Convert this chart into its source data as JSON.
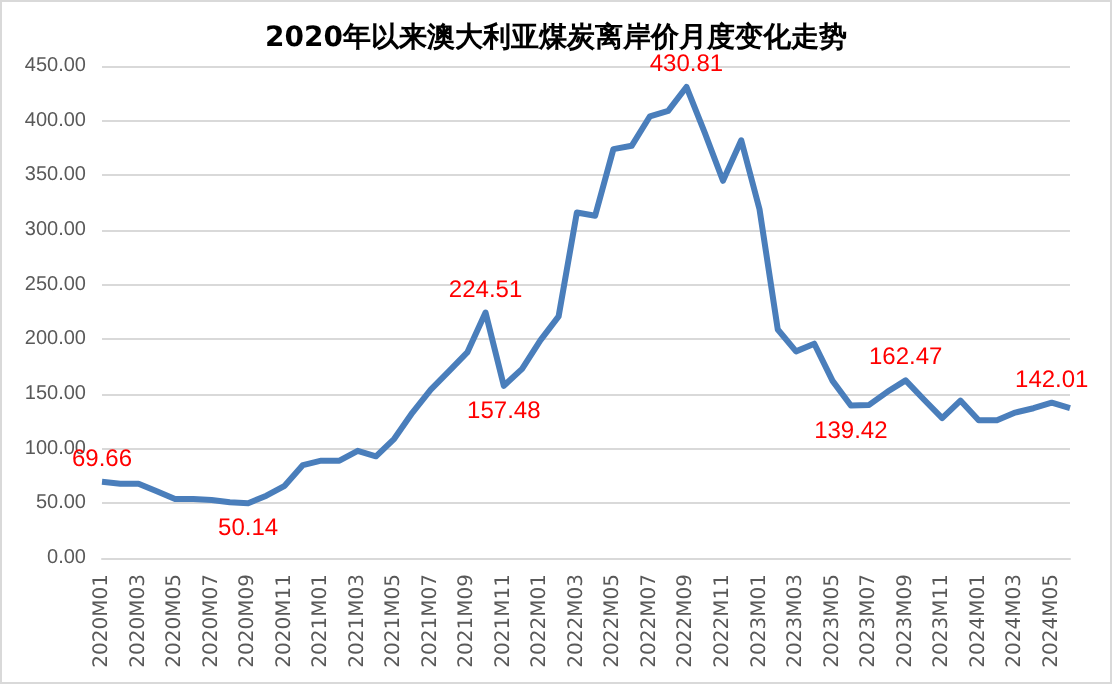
{
  "chart_data": {
    "type": "line",
    "title": "2020年以来澳大利亚煤炭离岸价月度变化走势",
    "categories": [
      "2020M01",
      null,
      "2020M03",
      null,
      "2020M05",
      null,
      "2020M07",
      null,
      "2020M09",
      null,
      "2020M11",
      null,
      "2021M01",
      null,
      "2021M03",
      null,
      "2021M05",
      null,
      "2021M07",
      null,
      "2021M09",
      null,
      "2021M11",
      null,
      "2022M01",
      null,
      "2022M03",
      null,
      "2022M05",
      null,
      "2022M07",
      null,
      "2022M09",
      null,
      "2022M11",
      null,
      "2023M01",
      null,
      "2023M03",
      null,
      "2023M05",
      null,
      "2023M07",
      null,
      "2023M09",
      null,
      "2023M11",
      null,
      "2024M01",
      null,
      "2024M03",
      null,
      "2024M05",
      null
    ],
    "series": [
      {
        "color": "#4a7ebb",
        "values": [
          69.66,
          68,
          68,
          61,
          54,
          54,
          53,
          51,
          50.14,
          57,
          66,
          85,
          89,
          89,
          98,
          93,
          109,
          133,
          154,
          171,
          188,
          224.51,
          157.48,
          173,
          199,
          221,
          316,
          313,
          374,
          377,
          404,
          409,
          430.81,
          389,
          345,
          382,
          319,
          209,
          189,
          196,
          162,
          139.42,
          140,
          152,
          162.47,
          145,
          128,
          144,
          126,
          126,
          133,
          137,
          142.01,
          137
        ],
        "value_labels": [
          "69.66",
          null,
          null,
          null,
          null,
          null,
          null,
          null,
          "50.14",
          null,
          null,
          null,
          null,
          null,
          null,
          null,
          null,
          null,
          null,
          null,
          null,
          "224.51",
          "157.48",
          null,
          null,
          null,
          null,
          null,
          null,
          null,
          null,
          null,
          "430.81",
          null,
          null,
          null,
          null,
          null,
          null,
          null,
          null,
          "139.42",
          null,
          null,
          "162.47",
          null,
          null,
          null,
          null,
          null,
          null,
          null,
          "142.01",
          null
        ]
      }
    ],
    "ylim": [
      0,
      450
    ],
    "yticks": [
      {
        "value": 0,
        "label": "0.00"
      },
      {
        "value": 50,
        "label": "50.00"
      },
      {
        "value": 100,
        "label": "100.00"
      },
      {
        "value": 150,
        "label": "150.00"
      },
      {
        "value": 200,
        "label": "200.00"
      },
      {
        "value": 250,
        "label": "250.00"
      },
      {
        "value": 300,
        "label": "300.00"
      },
      {
        "value": 350,
        "label": "350.00"
      },
      {
        "value": 400,
        "label": "400.00"
      },
      {
        "value": 450,
        "label": "450.00"
      }
    ],
    "grid": "y",
    "marker": "none",
    "line_style": "solid"
  }
}
